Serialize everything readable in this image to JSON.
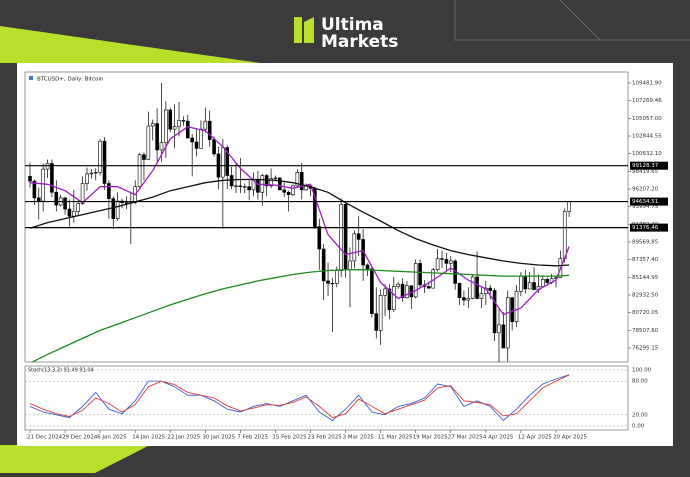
{
  "brand": {
    "line1": "Ultima",
    "line2": "Markets"
  },
  "chart_data": {
    "type": "candlestick",
    "title": "BTCUSD+, Daily: Bitcoin",
    "x": [
      "2024-12-21",
      "2024-12-22",
      "2024-12-23",
      "2024-12-24",
      "2024-12-25",
      "2024-12-26",
      "2024-12-27",
      "2024-12-28",
      "2024-12-29",
      "2024-12-30",
      "2024-12-31",
      "2025-01-01",
      "2025-01-02",
      "2025-01-03",
      "2025-01-04",
      "2025-01-05",
      "2025-01-06",
      "2025-01-07",
      "2025-01-08",
      "2025-01-09",
      "2025-01-10",
      "2025-01-11",
      "2025-01-12",
      "2025-01-13",
      "2025-01-14",
      "2025-01-15",
      "2025-01-16",
      "2025-01-17",
      "2025-01-18",
      "2025-01-19",
      "2025-01-20",
      "2025-01-21",
      "2025-01-22",
      "2025-01-23",
      "2025-01-24",
      "2025-01-25",
      "2025-01-26",
      "2025-01-27",
      "2025-01-28",
      "2025-01-29",
      "2025-01-30",
      "2025-01-31",
      "2025-02-01",
      "2025-02-02",
      "2025-02-03",
      "2025-02-04",
      "2025-02-05",
      "2025-02-06",
      "2025-02-07",
      "2025-02-08",
      "2025-02-09",
      "2025-02-10",
      "2025-02-11",
      "2025-02-12",
      "2025-02-13",
      "2025-02-14",
      "2025-02-15",
      "2025-02-16",
      "2025-02-17",
      "2025-02-18",
      "2025-02-19",
      "2025-02-20",
      "2025-02-21",
      "2025-02-22",
      "2025-02-23",
      "2025-02-24",
      "2025-02-25",
      "2025-02-26",
      "2025-02-27",
      "2025-02-28",
      "2025-03-01",
      "2025-03-02",
      "2025-03-03",
      "2025-03-04",
      "2025-03-05",
      "2025-03-06",
      "2025-03-07",
      "2025-03-08",
      "2025-03-09",
      "2025-03-10",
      "2025-03-11",
      "2025-03-12",
      "2025-03-13",
      "2025-03-14",
      "2025-03-15",
      "2025-03-16",
      "2025-03-17",
      "2025-03-18",
      "2025-03-19",
      "2025-03-20",
      "2025-03-21",
      "2025-03-22",
      "2025-03-23",
      "2025-03-24",
      "2025-03-25",
      "2025-03-26",
      "2025-03-27",
      "2025-03-28",
      "2025-03-29",
      "2025-03-30",
      "2025-03-31",
      "2025-04-01",
      "2025-04-02",
      "2025-04-03",
      "2025-04-04",
      "2025-04-05",
      "2025-04-06",
      "2025-04-07",
      "2025-04-08",
      "2025-04-09",
      "2025-04-10",
      "2025-04-11",
      "2025-04-12",
      "2025-04-13",
      "2025-04-14",
      "2025-04-15",
      "2025-04-16",
      "2025-04-17",
      "2025-04-18",
      "2025-04-19",
      "2025-04-20",
      "2025-04-21",
      "2025-04-22",
      "2025-04-23"
    ],
    "open": [
      97800,
      97200,
      95100,
      94700,
      98700,
      99400,
      95800,
      94200,
      95100,
      93700,
      92800,
      93400,
      94400,
      96900,
      98100,
      98200,
      98300,
      102200,
      96900,
      95000,
      92500,
      94700,
      94500,
      94500,
      94500,
      96500,
      100500,
      99900,
      104100,
      104400,
      101100,
      102000,
      106100,
      103700,
      104000,
      104800,
      104700,
      102600,
      102100,
      101300,
      103700,
      104700,
      102400,
      100600,
      97700,
      101400,
      97900,
      96600,
      96600,
      96500,
      96500,
      96100,
      97400,
      95800,
      97900,
      96600,
      97500,
      97600,
      96100,
      95800,
      95500,
      96600,
      98300,
      96100,
      96600,
      96300,
      91500,
      88700,
      84700,
      84400,
      84400,
      86000,
      94300,
      86100,
      87200,
      90600,
      89900,
      86700,
      86200,
      80600,
      78500,
      82900,
      83700,
      81100,
      84000,
      84300,
      82600,
      84100,
      82700,
      86900,
      84200,
      84000,
      83800,
      86100,
      87500,
      87400,
      86900,
      87200,
      84400,
      82600,
      82300,
      82500,
      85200,
      82500,
      83100,
      83800,
      83500,
      78200,
      79200,
      76300,
      82600,
      79600,
      83400,
      85300,
      83700,
      84500,
      83600,
      84000,
      84900,
      84500,
      85000,
      85100,
      87500,
      93400
    ],
    "high": [
      99500,
      97400,
      96400,
      99400,
      99900,
      99900,
      97300,
      95500,
      95200,
      94900,
      96100,
      94900,
      97800,
      98900,
      98700,
      98800,
      102500,
      102700,
      97300,
      95300,
      95800,
      95000,
      95300,
      95900,
      97300,
      100700,
      100800,
      105900,
      104900,
      106300,
      109500,
      107200,
      106400,
      106800,
      107100,
      105300,
      105500,
      103100,
      103800,
      104800,
      106400,
      106000,
      102800,
      101500,
      102500,
      101700,
      99000,
      99400,
      100100,
      96900,
      97300,
      98300,
      98500,
      98100,
      98100,
      98800,
      97900,
      97700,
      97000,
      96000,
      96800,
      98700,
      99500,
      96900,
      96700,
      96500,
      92500,
      89300,
      87000,
      85100,
      86500,
      95000,
      94400,
      88900,
      91000,
      92800,
      91200,
      86900,
      86500,
      83900,
      83600,
      84300,
      84300,
      85200,
      84600,
      85000,
      84700,
      84100,
      87400,
      87400,
      84800,
      84500,
      86300,
      88700,
      88500,
      88200,
      87800,
      87400,
      84500,
      83500,
      83900,
      85400,
      88400,
      83900,
      84700,
      84200,
      83800,
      81200,
      80800,
      83500,
      82700,
      84200,
      85800,
      86100,
      85800,
      86400,
      85500,
      85400,
      85100,
      85600,
      85300,
      88500,
      93800,
      94700
    ],
    "low": [
      96400,
      94200,
      92400,
      93400,
      97600,
      95200,
      93400,
      94000,
      93000,
      91500,
      92000,
      92800,
      94200,
      96000,
      97500,
      97300,
      97900,
      96100,
      92500,
      91200,
      92200,
      93800,
      93700,
      89300,
      94300,
      96300,
      97300,
      99900,
      102300,
      99600,
      99600,
      100100,
      103300,
      101300,
      102800,
      104100,
      102500,
      97800,
      100300,
      101300,
      103300,
      101500,
      100300,
      96200,
      91200,
      96200,
      96200,
      95700,
      95700,
      95700,
      94800,
      95300,
      94900,
      94100,
      95300,
      96300,
      97300,
      96100,
      95200,
      93400,
      95300,
      96400,
      94900,
      96000,
      95300,
      91200,
      86100,
      82300,
      82800,
      78300,
      83900,
      85200,
      85100,
      81400,
      86300,
      87800,
      84700,
      85300,
      80100,
      77500,
      76700,
      80300,
      79900,
      80800,
      83700,
      82100,
      82500,
      81200,
      82500,
      83800,
      83200,
      83700,
      83800,
      85900,
      86300,
      85900,
      85800,
      83600,
      81700,
      81600,
      81300,
      82400,
      82400,
      81300,
      81700,
      82400,
      77200,
      74500,
      76300,
      74600,
      78500,
      78900,
      82800,
      83100,
      83700,
      83600,
      83200,
      83800,
      84300,
      84300,
      83900,
      85100,
      87000,
      92700
    ],
    "close": [
      97200,
      95100,
      94700,
      98700,
      99400,
      95800,
      94200,
      95100,
      93700,
      92800,
      93400,
      94400,
      96900,
      98100,
      98200,
      98300,
      102200,
      96900,
      95000,
      92500,
      94700,
      94500,
      94500,
      94500,
      96500,
      100500,
      99900,
      104100,
      104400,
      101100,
      102000,
      106100,
      103700,
      104000,
      104800,
      104700,
      102600,
      102100,
      101300,
      103700,
      104700,
      102400,
      100600,
      97700,
      101400,
      97900,
      96600,
      96600,
      96500,
      96500,
      96100,
      97400,
      95800,
      97900,
      96600,
      97500,
      97600,
      96100,
      95800,
      95500,
      96600,
      98300,
      96100,
      96600,
      96300,
      91500,
      88700,
      84700,
      84400,
      84400,
      86000,
      94300,
      86100,
      87200,
      90600,
      89900,
      86700,
      86200,
      80600,
      78500,
      82900,
      83700,
      81100,
      84000,
      84300,
      82600,
      84100,
      82700,
      86900,
      84200,
      84000,
      83800,
      86100,
      87500,
      87400,
      86900,
      87200,
      84400,
      82600,
      82300,
      82500,
      85200,
      82500,
      83100,
      83800,
      83500,
      78200,
      79200,
      76300,
      82600,
      79600,
      83400,
      85300,
      83700,
      84500,
      83600,
      84000,
      84900,
      84500,
      85000,
      85100,
      87500,
      93400,
      94600
    ],
    "up_color": "#ffffff",
    "down_color": "#000000",
    "outline_color": "#000000",
    "ylim": [
      74549,
      110859
    ],
    "yticks": [
      {
        "value": 109481.9,
        "label": "109481.90"
      },
      {
        "value": 107269.46,
        "label": "107269.46"
      },
      {
        "value": 105057,
        "label": "105057.00"
      },
      {
        "value": 102844.55,
        "label": "102844.55"
      },
      {
        "value": 100632.1,
        "label": "100632.10"
      },
      {
        "value": 98419.65,
        "label": "98419.65"
      },
      {
        "value": 96207.2,
        "label": "96207.20"
      },
      {
        "value": 93994.75,
        "label": "93994.75"
      },
      {
        "value": 91782.3,
        "label": "91782.30"
      },
      {
        "value": 89569.85,
        "label": "89569.85"
      },
      {
        "value": 87357.4,
        "label": "87357.40"
      },
      {
        "value": 85144.95,
        "label": "85144.95"
      },
      {
        "value": 82932.5,
        "label": "82932.50"
      },
      {
        "value": 80720.05,
        "label": "80720.05"
      },
      {
        "value": 78507.6,
        "label": "78507.60"
      },
      {
        "value": 76295.15,
        "label": "76295.15"
      }
    ],
    "levels": [
      99128.37,
      94634.51,
      91376.46
    ],
    "grid": false,
    "xticks": [
      {
        "value": "2024-12-21",
        "label": "21 Dec 2024"
      },
      {
        "value": "2024-12-29",
        "label": "29 Dec 2024"
      },
      {
        "value": "2025-01-06",
        "label": "6 Jan 2025"
      },
      {
        "value": "2025-01-14",
        "label": "14 Jan 2025"
      },
      {
        "value": "2025-01-22",
        "label": "22 Jan 2025"
      },
      {
        "value": "2025-01-30",
        "label": "30 Jan 2025"
      },
      {
        "value": "2025-02-07",
        "label": "7 Feb 2025"
      },
      {
        "value": "2025-02-15",
        "label": "15 Feb 2025"
      },
      {
        "value": "2025-02-23",
        "label": "23 Feb 2025"
      },
      {
        "value": "2025-03-03",
        "label": "3 Mar 2025"
      },
      {
        "value": "2025-03-11",
        "label": "11 Mar 2025"
      },
      {
        "value": "2025-03-19",
        "label": "19 Mar 2025"
      },
      {
        "value": "2025-03-27",
        "label": "27 Mar 2025"
      },
      {
        "value": "2025-04-04",
        "label": "4 Apr 2025"
      },
      {
        "value": "2025-04-12",
        "label": "12 Apr 2025"
      },
      {
        "value": "2025-04-20",
        "label": "20 Apr 2025"
      }
    ],
    "overlays": [
      {
        "color": "#9b1fc6",
        "x": [
          "2024-12-21",
          "2024-12-25",
          "2024-12-29",
          "2025-01-02",
          "2025-01-06",
          "2025-01-10",
          "2025-01-14",
          "2025-01-18",
          "2025-01-22",
          "2025-01-26",
          "2025-01-30",
          "2025-02-03",
          "2025-02-07",
          "2025-02-11",
          "2025-02-15",
          "2025-02-19",
          "2025-02-23",
          "2025-02-27",
          "2025-03-03",
          "2025-03-07",
          "2025-03-11",
          "2025-03-15",
          "2025-03-19",
          "2025-03-23",
          "2025-03-27",
          "2025-03-31",
          "2025-04-04",
          "2025-04-08",
          "2025-04-12",
          "2025-04-16",
          "2025-04-20",
          "2025-04-23"
        ],
        "values": [
          97000,
          96800,
          96000,
          94500,
          96500,
          96500,
          95500,
          98500,
          102500,
          104000,
          103500,
          101500,
          98800,
          96800,
          96700,
          96300,
          96800,
          90500,
          88000,
          88500,
          84500,
          82500,
          83500,
          84800,
          86300,
          84800,
          83700,
          80500,
          81300,
          83600,
          84800,
          89000
        ]
      },
      {
        "color": "#111111",
        "x": [
          "2024-12-21",
          "2024-12-25",
          "2024-12-29",
          "2025-01-02",
          "2025-01-06",
          "2025-01-10",
          "2025-01-14",
          "2025-01-18",
          "2025-01-22",
          "2025-01-26",
          "2025-01-30",
          "2025-02-03",
          "2025-02-07",
          "2025-02-11",
          "2025-02-15",
          "2025-02-19",
          "2025-02-23",
          "2025-02-27",
          "2025-03-03",
          "2025-03-07",
          "2025-03-11",
          "2025-03-15",
          "2025-03-19",
          "2025-03-23",
          "2025-03-27",
          "2025-03-31",
          "2025-04-04",
          "2025-04-08",
          "2025-04-12",
          "2025-04-16",
          "2025-04-20",
          "2025-04-23"
        ],
        "values": [
          91300,
          92000,
          92500,
          93000,
          93500,
          94000,
          94600,
          95200,
          96000,
          96500,
          97000,
          97300,
          97400,
          97400,
          97300,
          97000,
          96500,
          95800,
          94500,
          93300,
          92200,
          91000,
          90000,
          89200,
          88500,
          88000,
          87600,
          87200,
          86900,
          86700,
          86600,
          86700
        ]
      },
      {
        "color": "#1e8a1e",
        "x": [
          "2024-12-21",
          "2024-12-25",
          "2024-12-29",
          "2025-01-02",
          "2025-01-06",
          "2025-01-10",
          "2025-01-14",
          "2025-01-18",
          "2025-01-22",
          "2025-01-26",
          "2025-01-30",
          "2025-02-03",
          "2025-02-07",
          "2025-02-11",
          "2025-02-15",
          "2025-02-19",
          "2025-02-23",
          "2025-02-27",
          "2025-03-03",
          "2025-03-07",
          "2025-03-11",
          "2025-03-15",
          "2025-03-19",
          "2025-03-23",
          "2025-03-27",
          "2025-03-31",
          "2025-04-04",
          "2025-04-08",
          "2025-04-12",
          "2025-04-16",
          "2025-04-20",
          "2025-04-23"
        ],
        "values": [
          74400,
          75500,
          76500,
          77500,
          78500,
          79300,
          80100,
          80900,
          81700,
          82400,
          83100,
          83700,
          84200,
          84700,
          85100,
          85500,
          85800,
          86000,
          86100,
          86100,
          86000,
          85900,
          85800,
          85700,
          85600,
          85500,
          85400,
          85300,
          85300,
          85300,
          85300,
          85400
        ]
      }
    ],
    "oscillator": {
      "title": "Stoch(13,3,3) 91.49 91.04",
      "ylim": [
        0,
        100
      ],
      "yticks": [
        {
          "value": 100,
          "label": "100.00"
        },
        {
          "value": 80,
          "label": "80.00"
        },
        {
          "value": 20,
          "label": "20.00"
        },
        {
          "value": 0,
          "label": "0.00"
        }
      ],
      "x": [
        "2024-12-21",
        "2024-12-24",
        "2024-12-27",
        "2024-12-30",
        "2025-01-02",
        "2025-01-05",
        "2025-01-08",
        "2025-01-11",
        "2025-01-14",
        "2025-01-17",
        "2025-01-20",
        "2025-01-23",
        "2025-01-26",
        "2025-01-29",
        "2025-02-01",
        "2025-02-04",
        "2025-02-07",
        "2025-02-10",
        "2025-02-13",
        "2025-02-16",
        "2025-02-19",
        "2025-02-22",
        "2025-02-25",
        "2025-02-28",
        "2025-03-03",
        "2025-03-06",
        "2025-03-09",
        "2025-03-12",
        "2025-03-15",
        "2025-03-18",
        "2025-03-21",
        "2025-03-24",
        "2025-03-27",
        "2025-03-30",
        "2025-04-02",
        "2025-04-05",
        "2025-04-08",
        "2025-04-11",
        "2025-04-14",
        "2025-04-17",
        "2025-04-20",
        "2025-04-23"
      ],
      "lines": [
        {
          "color": "#3a5fd9",
          "values": [
            35,
            25,
            20,
            15,
            35,
            60,
            30,
            22,
            45,
            80,
            80,
            70,
            55,
            55,
            45,
            30,
            25,
            35,
            40,
            35,
            45,
            55,
            25,
            10,
            30,
            55,
            25,
            20,
            35,
            40,
            50,
            75,
            70,
            35,
            45,
            35,
            10,
            30,
            55,
            75,
            84,
            91.49
          ]
        },
        {
          "color": "#e03c3c",
          "values": [
            40,
            30,
            22,
            17,
            28,
            50,
            40,
            25,
            38,
            70,
            80,
            74,
            60,
            55,
            50,
            36,
            27,
            32,
            38,
            37,
            42,
            52,
            35,
            15,
            22,
            48,
            35,
            22,
            30,
            38,
            46,
            68,
            72,
            45,
            42,
            38,
            18,
            22,
            45,
            68,
            80,
            91.04
          ]
        }
      ]
    }
  }
}
